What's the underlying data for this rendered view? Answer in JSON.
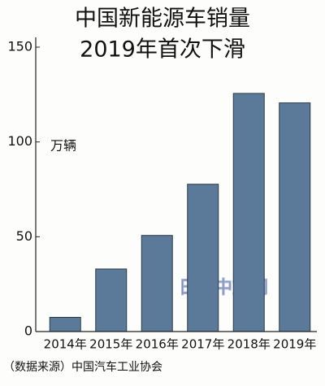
{
  "chart_data": {
    "type": "bar",
    "title": "中国新能源车销量",
    "subtitle": "2019年首次下滑",
    "y_label": "万辆",
    "categories": [
      "2014年",
      "2015年",
      "2016年",
      "2017年",
      "2018年",
      "2019年"
    ],
    "values": [
      7.5,
      33,
      50.7,
      77.7,
      125.6,
      120.6
    ],
    "color": "#5b7a99",
    "ylim": [
      0,
      150
    ],
    "yticks": [
      0,
      50,
      100,
      150
    ],
    "grid": false,
    "source": "（数据来源）中国汽车工业协会",
    "watermark": "日经中文网"
  }
}
